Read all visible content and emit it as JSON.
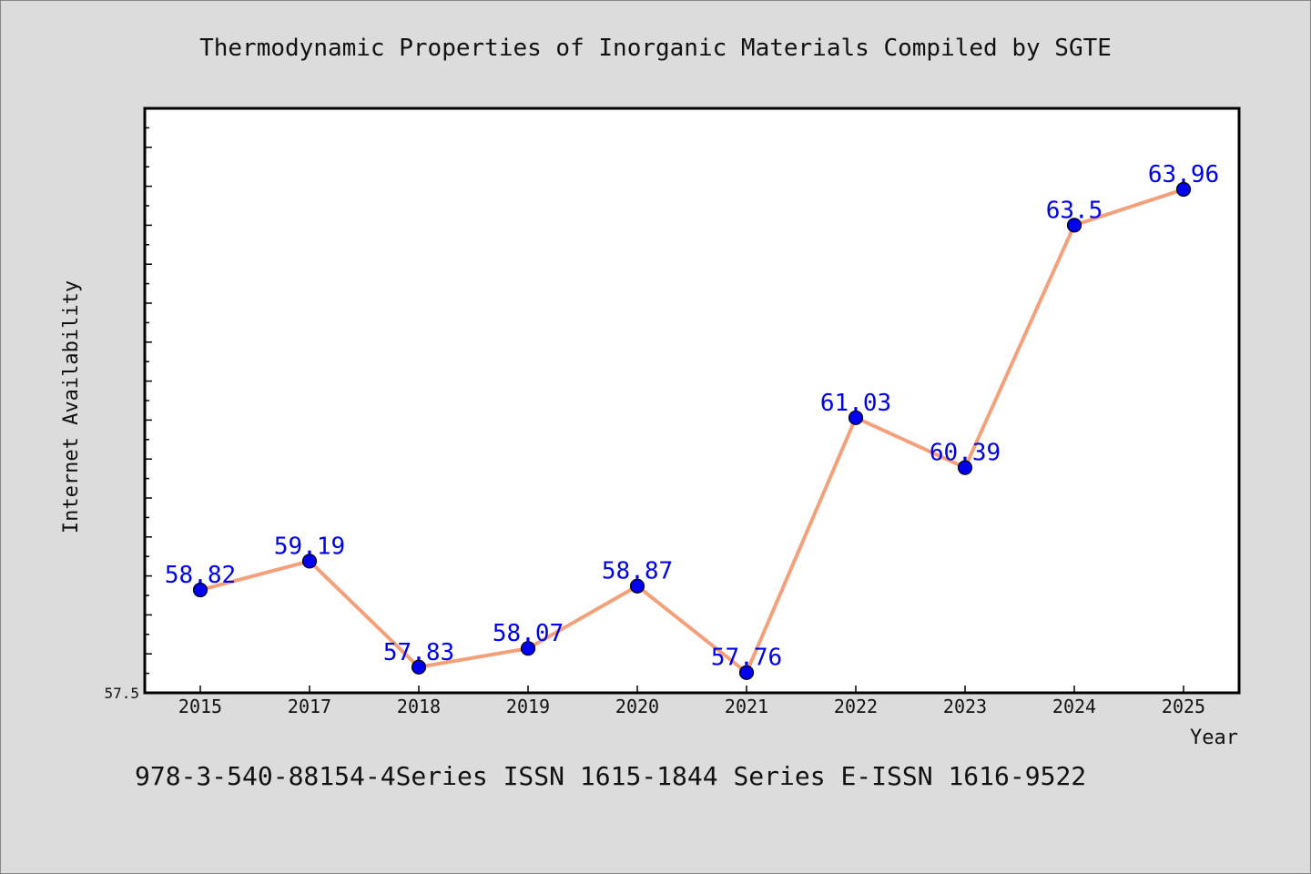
{
  "chart_data": {
    "type": "line",
    "title": "Thermodynamic Properties of Inorganic Materials Compiled by SGTE",
    "xlabel": "Year",
    "ylabel": "Internet Availability",
    "categories": [
      "2015",
      "2017",
      "2018",
      "2019",
      "2020",
      "2021",
      "2022",
      "2023",
      "2024",
      "2025"
    ],
    "series": [
      {
        "values": [
          58.82,
          59.19,
          57.83,
          58.07,
          58.87,
          57.76,
          61.03,
          60.39,
          63.5,
          63.96
        ],
        "data_labels": [
          "58.82",
          "59.19",
          "57.83",
          "58.07",
          "58.87",
          "57.76",
          "61.03",
          "60.39",
          "63.5",
          "63.96"
        ]
      }
    ],
    "ylim": [
      57.5,
      65.0
    ],
    "ytick_labels": [
      "57.5"
    ],
    "grid": false,
    "line_color": "#f4a07a",
    "marker_color": "#0000ee",
    "label_color": "#0000ee"
  },
  "footer_text": "978-3-540-88154-4Series ISSN 1615-1844 Series E-ISSN 1616-9522"
}
